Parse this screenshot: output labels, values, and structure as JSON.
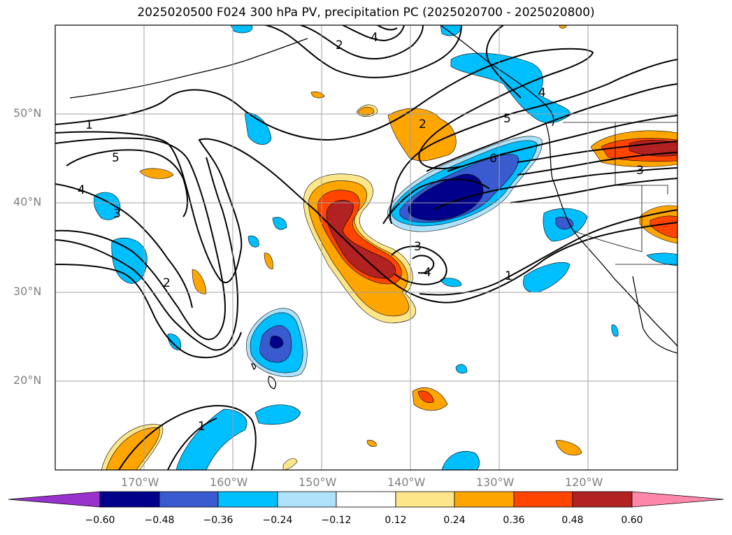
{
  "title": "2025020500 F024 300 hPa PV, precipitation PC (2025020700 - 2025020800)",
  "lat_labels": [
    "50°N",
    "40°N",
    "30°N",
    "20°N"
  ],
  "lon_labels": [
    "170°W",
    "160°W",
    "150°W",
    "140°W",
    "130°W",
    "120°W"
  ],
  "pv_contour_labels": [
    "1",
    "2",
    "3",
    "4",
    "5",
    "6"
  ],
  "colorbar": {
    "ticks": [
      "−0.60",
      "−0.48",
      "−0.36",
      "−0.24",
      "−0.12",
      "0.12",
      "0.24",
      "0.36",
      "0.48",
      "0.60"
    ],
    "colors": [
      "#9932cc",
      "#00008b",
      "#3a5bd0",
      "#00bfff",
      "#aee2fb",
      "#ffffff",
      "#fde68a",
      "#ffa500",
      "#ff4500",
      "#b22222",
      "#ff88aa"
    ]
  }
}
